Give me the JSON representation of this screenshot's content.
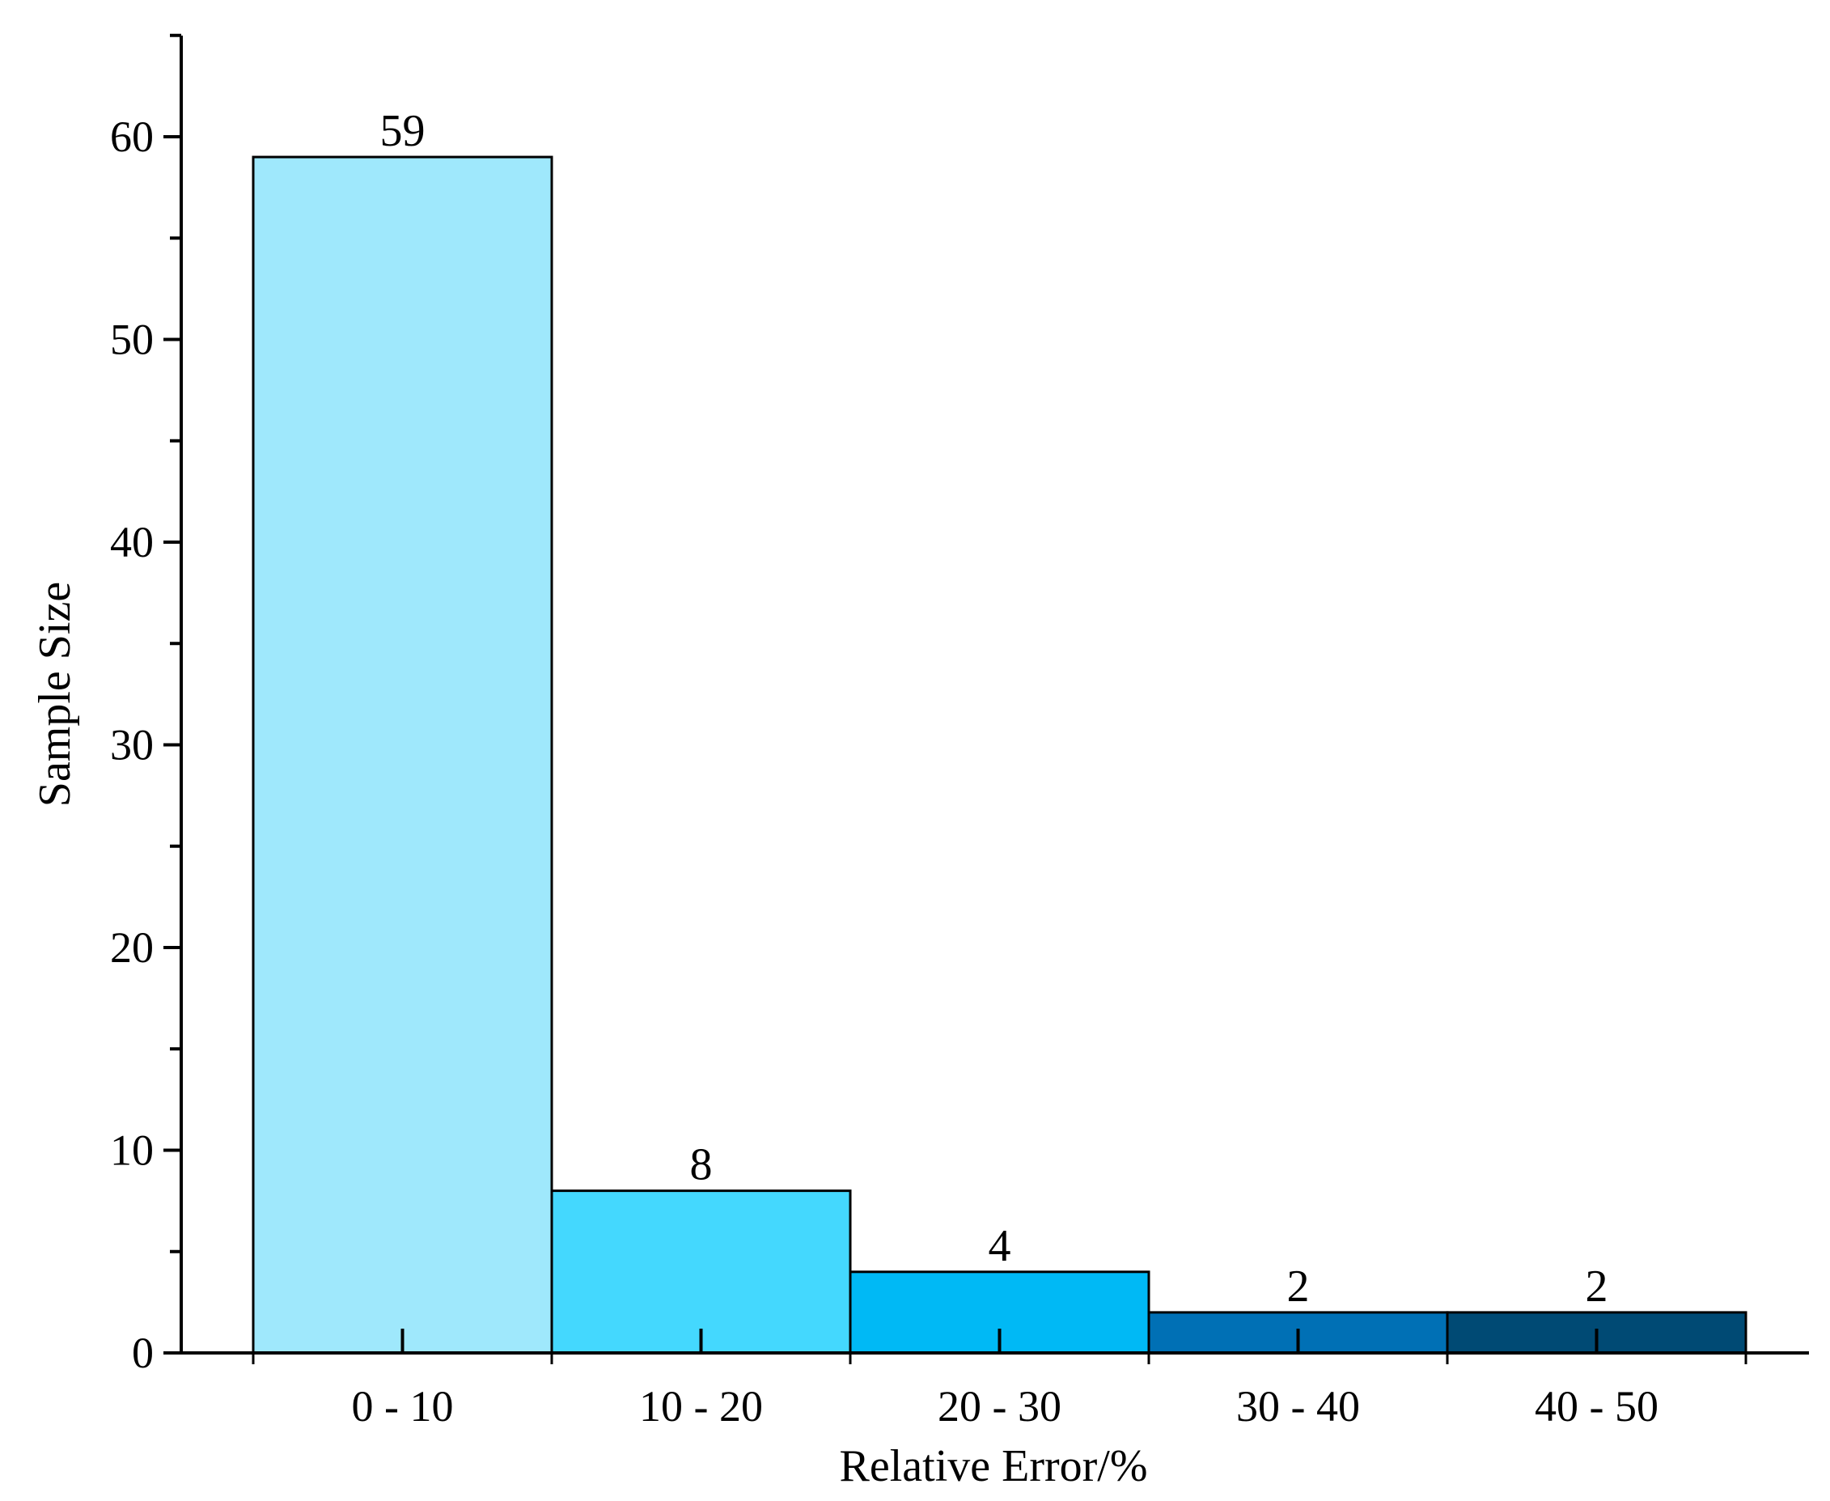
{
  "chart_data": {
    "type": "bar",
    "title": "",
    "xlabel": "Relative Error/%",
    "ylabel": "Sample Size",
    "categories": [
      "0 - 10",
      "10 - 20",
      "20 - 30",
      "30 - 40",
      "40 - 50"
    ],
    "values": [
      59,
      8,
      4,
      2,
      2
    ],
    "data_labels": [
      "59",
      "8",
      "4",
      "2",
      "2"
    ],
    "ylim": [
      0,
      65
    ],
    "yticks": [
      0,
      10,
      20,
      30,
      40,
      50,
      60
    ],
    "ytick_labels": [
      "0",
      "10",
      "20",
      "30",
      "40",
      "50",
      "60"
    ],
    "y_minor_step": 5,
    "bar_colors": [
      "#9fe8fc",
      "#44d8fe",
      "#00b9f5",
      "#0070b5",
      "#004a74"
    ],
    "edge_color": "#000000",
    "grid": false,
    "legend": "none"
  }
}
